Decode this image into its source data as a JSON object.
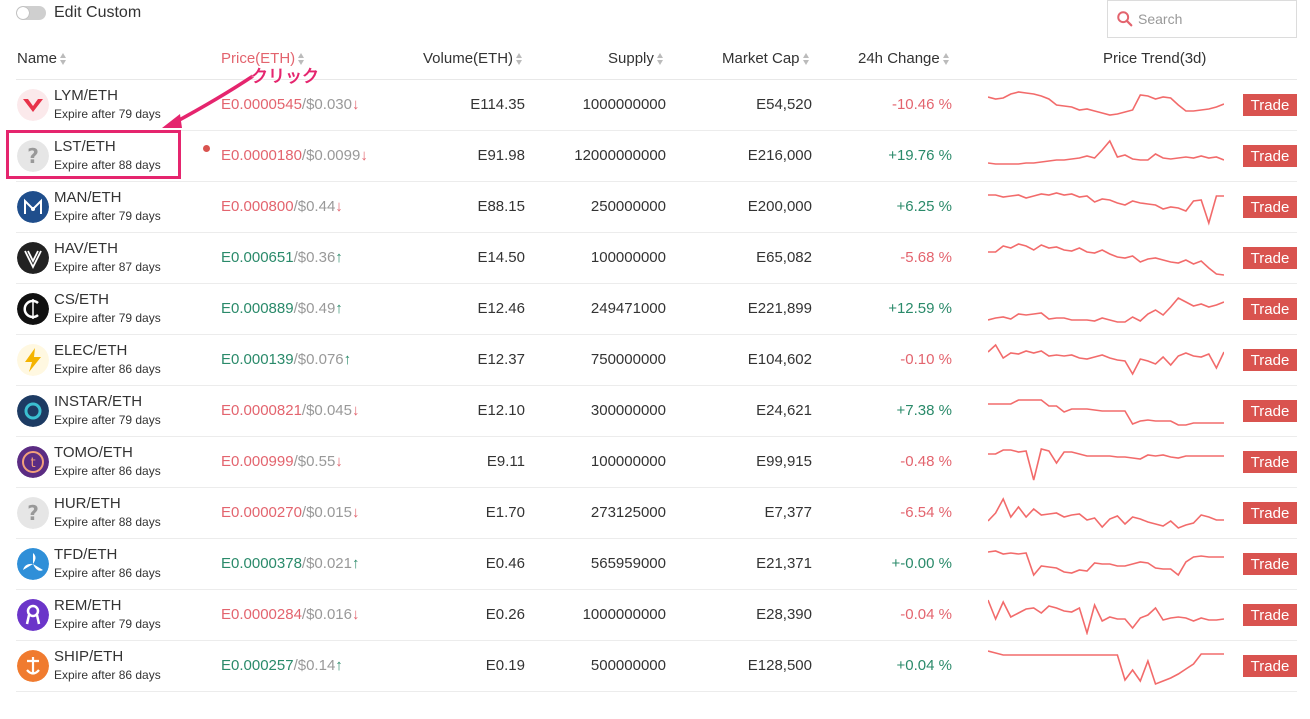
{
  "toolbar": {
    "toggle_label": "Edit Custom"
  },
  "search": {
    "placeholder": "Search"
  },
  "columns": {
    "name": "Name",
    "price": "Price(ETH)",
    "volume": "Volume(ETH)",
    "supply": "Supply",
    "market_cap": "Market Cap",
    "change": "24h Change",
    "trend": "Price Trend(3d)"
  },
  "annotation": {
    "text": "クリック"
  },
  "colors": {
    "down": "#e3646e",
    "up": "#2a8a6a",
    "trade": "#d9534f",
    "highlight": "#e5256e",
    "trend_line": "#f26b6b"
  },
  "rows": [
    {
      "icon": "lym-logo-icon",
      "pair": "LYM/ETH",
      "expire": "Expire after 79 days",
      "price_eth": "E0.0000545",
      "price_usd": "/$0.030",
      "dir": "down",
      "arrow": "↓",
      "volume": "E114.35",
      "supply": "1000000000",
      "market_cap": "E54,520",
      "change": "-10.46 %",
      "change_dir": "neg",
      "trade": "Trade",
      "trend": [
        12,
        14,
        13,
        9,
        7,
        8,
        9,
        11,
        14,
        20,
        21,
        22,
        25,
        24,
        26,
        28,
        30,
        29,
        27,
        25,
        10,
        11,
        14,
        12,
        13,
        20,
        26,
        26,
        25,
        24,
        22,
        19
      ]
    },
    {
      "icon": "question-icon",
      "pair": "LST/ETH",
      "expire": "Expire after 88 days",
      "price_eth": "E0.0000180",
      "price_usd": "/$0.0099",
      "dir": "down",
      "arrow": "↓",
      "volume": "E91.98",
      "supply": "12000000000",
      "market_cap": "E216,000",
      "change": "+19.76 %",
      "change_dir": "pos",
      "trade": "Trade",
      "trend": [
        27,
        28,
        28,
        28,
        28,
        27,
        27,
        26,
        25,
        24,
        24,
        23,
        22,
        20,
        22,
        14,
        5,
        21,
        19,
        23,
        24,
        24,
        18,
        22,
        23,
        22,
        21,
        22,
        20,
        22,
        21,
        24
      ]
    },
    {
      "icon": "man-logo-icon",
      "pair": "MAN/ETH",
      "expire": "Expire after 79 days",
      "price_eth": "E0.000800",
      "price_usd": "/$0.44",
      "dir": "down",
      "arrow": "↓",
      "volume": "E88.15",
      "supply": "250000000",
      "market_cap": "E200,000",
      "change": "+6.25 %",
      "change_dir": "pos",
      "trade": "Trade",
      "trend": [
        8,
        8,
        10,
        9,
        8,
        11,
        9,
        7,
        8,
        6,
        8,
        7,
        10,
        9,
        15,
        12,
        13,
        16,
        18,
        14,
        16,
        17,
        18,
        22,
        20,
        21,
        24,
        14,
        13,
        36,
        9,
        9
      ]
    },
    {
      "icon": "hav-logo-icon",
      "pair": "HAV/ETH",
      "expire": "Expire after 87 days",
      "price_eth": "E0.000651",
      "price_usd": "/$0.36",
      "dir": "up",
      "arrow": "↑",
      "volume": "E14.50",
      "supply": "100000000",
      "market_cap": "E65,082",
      "change": "-5.68 %",
      "change_dir": "neg",
      "trade": "Trade",
      "trend": [
        14,
        14,
        8,
        10,
        6,
        8,
        12,
        7,
        10,
        9,
        12,
        13,
        10,
        14,
        15,
        12,
        16,
        19,
        20,
        18,
        24,
        21,
        20,
        22,
        24,
        25,
        22,
        26,
        23,
        30,
        36,
        37
      ]
    },
    {
      "icon": "cs-logo-icon",
      "pair": "CS/ETH",
      "expire": "Expire after 79 days",
      "price_eth": "E0.000889",
      "price_usd": "/$0.49",
      "dir": "up",
      "arrow": "↑",
      "volume": "E12.46",
      "supply": "249471000",
      "market_cap": "E221,899",
      "change": "+12.59 %",
      "change_dir": "pos",
      "trade": "Trade",
      "trend": [
        31,
        29,
        28,
        30,
        25,
        26,
        25,
        24,
        30,
        29,
        29,
        31,
        31,
        31,
        32,
        29,
        31,
        33,
        33,
        28,
        32,
        25,
        21,
        26,
        18,
        9,
        13,
        17,
        15,
        18,
        16,
        13
      ]
    },
    {
      "icon": "lightning-icon",
      "pair": "ELEC/ETH",
      "expire": "Expire after 86 days",
      "price_eth": "E0.000139",
      "price_usd": "/$0.076",
      "dir": "up",
      "arrow": "↑",
      "volume": "E12.37",
      "supply": "750000000",
      "market_cap": "E104,602",
      "change": "-0.10 %",
      "change_dir": "neg",
      "trade": "Trade",
      "trend": [
        12,
        5,
        18,
        13,
        14,
        11,
        13,
        11,
        16,
        15,
        16,
        15,
        18,
        19,
        17,
        15,
        18,
        20,
        21,
        34,
        19,
        21,
        24,
        17,
        25,
        16,
        13,
        16,
        17,
        14,
        28,
        12
      ]
    },
    {
      "icon": "instar-logo-icon",
      "pair": "INSTAR/ETH",
      "expire": "Expire after 79 days",
      "price_eth": "E0.0000821",
      "price_usd": "/$0.045",
      "dir": "down",
      "arrow": "↓",
      "volume": "E12.10",
      "supply": "300000000",
      "market_cap": "E24,621",
      "change": "+7.38 %",
      "change_dir": "pos",
      "trade": "Trade",
      "trend": [
        13,
        13,
        13,
        13,
        9,
        9,
        9,
        9,
        15,
        15,
        21,
        18,
        18,
        18,
        19,
        20,
        20,
        20,
        20,
        33,
        30,
        29,
        30,
        30,
        30,
        34,
        34,
        32,
        32,
        32,
        32,
        32
      ]
    },
    {
      "icon": "tomo-logo-icon",
      "pair": "TOMO/ETH",
      "expire": "Expire after 86 days",
      "price_eth": "E0.000999",
      "price_usd": "/$0.55",
      "dir": "down",
      "arrow": "↓",
      "volume": "E9.11",
      "supply": "100000000",
      "market_cap": "E99,915",
      "change": "-0.48 %",
      "change_dir": "neg",
      "trade": "Trade",
      "trend": [
        12,
        12,
        8,
        8,
        10,
        9,
        38,
        7,
        9,
        21,
        10,
        10,
        12,
        14,
        14,
        14,
        14,
        15,
        15,
        16,
        17,
        13,
        14,
        13,
        15,
        16,
        14,
        14,
        14,
        14,
        14,
        14
      ]
    },
    {
      "icon": "question-icon",
      "pair": "HUR/ETH",
      "expire": "Expire after 88 days",
      "price_eth": "E0.0000270",
      "price_usd": "/$0.015",
      "dir": "down",
      "arrow": "↓",
      "volume": "E1.70",
      "supply": "273125000",
      "market_cap": "E7,377",
      "change": "-6.54 %",
      "change_dir": "neg",
      "trade": "Trade",
      "trend": [
        28,
        20,
        6,
        24,
        14,
        24,
        16,
        22,
        21,
        20,
        24,
        22,
        21,
        27,
        25,
        34,
        26,
        23,
        31,
        24,
        26,
        29,
        31,
        33,
        28,
        35,
        32,
        30,
        22,
        24,
        27,
        27
      ]
    },
    {
      "icon": "tfd-logo-icon",
      "pair": "TFD/ETH",
      "expire": "Expire after 86 days",
      "price_eth": "E0.0000378",
      "price_usd": "/$0.021",
      "dir": "up",
      "arrow": "↑",
      "volume": "E0.46",
      "supply": "565959000",
      "market_cap": "E21,371",
      "change": "+-0.00 %",
      "change_dir": "pos",
      "trade": "Trade",
      "trend": [
        8,
        7,
        10,
        9,
        10,
        9,
        31,
        22,
        23,
        24,
        28,
        29,
        26,
        27,
        19,
        20,
        20,
        22,
        22,
        20,
        18,
        19,
        24,
        25,
        25,
        31,
        18,
        13,
        12,
        13,
        13,
        13
      ]
    },
    {
      "icon": "rem-logo-icon",
      "pair": "REM/ETH",
      "expire": "Expire after 79 days",
      "price_eth": "E0.0000284",
      "price_usd": "/$0.016",
      "dir": "down",
      "arrow": "↓",
      "volume": "E0.26",
      "supply": "1000000000",
      "market_cap": "E28,390",
      "change": "-0.04 %",
      "change_dir": "neg",
      "trade": "Trade",
      "trend": [
        5,
        24,
        7,
        22,
        18,
        14,
        13,
        18,
        11,
        13,
        16,
        17,
        13,
        38,
        10,
        26,
        22,
        24,
        24,
        33,
        23,
        20,
        13,
        25,
        23,
        22,
        23,
        26,
        23,
        25,
        25,
        24
      ]
    },
    {
      "icon": "ship-logo-icon",
      "pair": "SHIP/ETH",
      "expire": "Expire after 86 days",
      "price_eth": "E0.000257",
      "price_usd": "/$0.14",
      "dir": "up",
      "arrow": "↑",
      "volume": "E0.19",
      "supply": "500000000",
      "market_cap": "E128,500",
      "change": "+0.04 %",
      "change_dir": "pos",
      "trade": "Trade",
      "trend": [
        5,
        7,
        9,
        9,
        9,
        9,
        9,
        9,
        9,
        9,
        9,
        9,
        9,
        9,
        9,
        9,
        9,
        9,
        34,
        24,
        35,
        15,
        38,
        35,
        32,
        28,
        23,
        18,
        8,
        8,
        8,
        8
      ]
    }
  ]
}
